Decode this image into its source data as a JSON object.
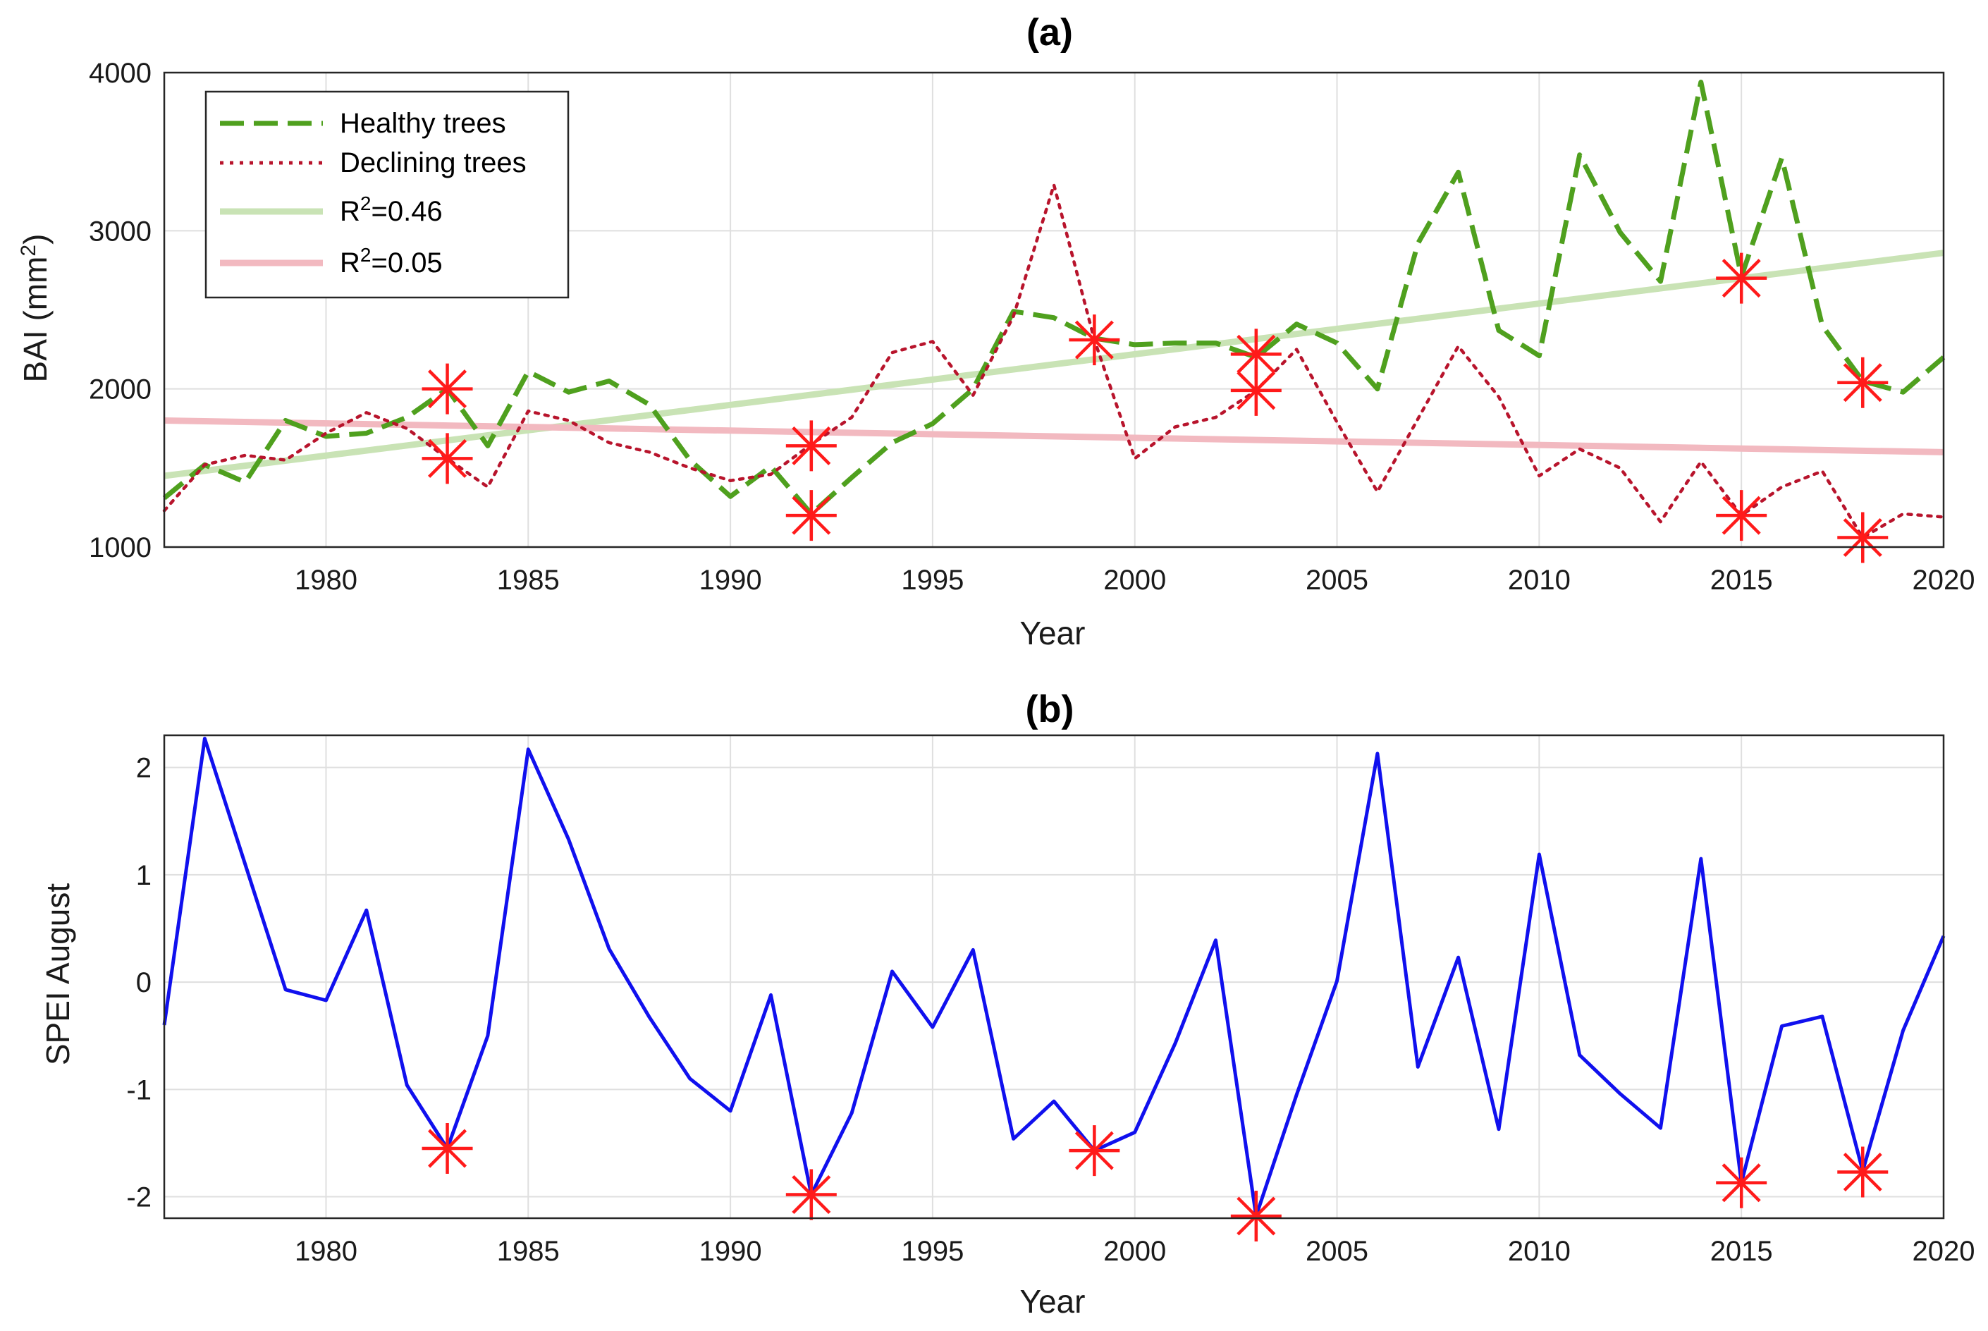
{
  "chart_data": [
    {
      "type": "line",
      "title": "(a)",
      "xlabel": "Year",
      "ylabel": "BAI (mm²)",
      "ylabel_base": "BAI (mm",
      "ylabel_sup": "2",
      "ylabel_tail": ")",
      "xlim": [
        1976,
        2020
      ],
      "ylim": [
        1000,
        4000
      ],
      "xticks": [
        "1980",
        "1985",
        "1990",
        "1995",
        "2000",
        "2005",
        "2010",
        "2015",
        "2020"
      ],
      "yticks": [
        "1000",
        "2000",
        "3000",
        "4000"
      ],
      "grid": true,
      "legend_position": "top-left",
      "x": [
        1976,
        1977,
        1978,
        1979,
        1980,
        1981,
        1982,
        1983,
        1984,
        1985,
        1986,
        1987,
        1988,
        1989,
        1990,
        1991,
        1992,
        1993,
        1994,
        1995,
        1996,
        1997,
        1998,
        1999,
        2000,
        2001,
        2002,
        2003,
        2004,
        2005,
        2006,
        2007,
        2008,
        2009,
        2010,
        2011,
        2012,
        2013,
        2014,
        2015,
        2016,
        2017,
        2018,
        2019,
        2020
      ],
      "series": [
        {
          "name": "Healthy trees",
          "color": "#4fa01e",
          "style": "dashed",
          "values": [
            1310,
            1520,
            1410,
            1800,
            1700,
            1720,
            1820,
            2000,
            1640,
            2110,
            1980,
            2050,
            1900,
            1550,
            1320,
            1510,
            1210,
            1440,
            1660,
            1780,
            2000,
            2490,
            2450,
            2320,
            2280,
            2290,
            2290,
            2200,
            2410,
            2290,
            2000,
            2920,
            3370,
            2370,
            2210,
            3480,
            2990,
            2680,
            3940,
            2710,
            3460,
            2400,
            2050,
            1980,
            2200
          ]
        },
        {
          "name": "Declining trees",
          "color": "#b8142c",
          "style": "dotted",
          "values": [
            1230,
            1520,
            1580,
            1550,
            1720,
            1850,
            1750,
            1560,
            1380,
            1860,
            1800,
            1660,
            1600,
            1500,
            1420,
            1460,
            1650,
            1820,
            2230,
            2300,
            1960,
            2460,
            3290,
            2310,
            1560,
            1760,
            1820,
            1990,
            2250,
            1790,
            1350,
            1810,
            2270,
            1950,
            1450,
            1620,
            1500,
            1160,
            1540,
            1200,
            1380,
            1480,
            1060,
            1210,
            1190
          ]
        },
        {
          "name": "R²=0.46",
          "label_base": "R",
          "label_sup": "2",
          "label_tail": "=0.46",
          "color": "#c9e3b5",
          "style": "solid",
          "type": "trend",
          "x": [
            1976,
            2020
          ],
          "values": [
            1450,
            2860
          ]
        },
        {
          "name": "R²=0.05",
          "label_base": "R",
          "label_sup": "2",
          "label_tail": "=0.05",
          "color": "#f2b9c0",
          "style": "solid",
          "type": "trend",
          "x": [
            1976,
            2020
          ],
          "values": [
            1800,
            1600
          ]
        }
      ],
      "markers": {
        "symbol": "asterisk",
        "color": "#ff1a1a",
        "points": [
          [
            1983,
            2000
          ],
          [
            1983,
            1560
          ],
          [
            1992,
            1640
          ],
          [
            1992,
            1200
          ],
          [
            1999,
            2310
          ],
          [
            2003,
            2220
          ],
          [
            2003,
            1990
          ],
          [
            2015,
            2700
          ],
          [
            2015,
            1200
          ],
          [
            2018,
            2040
          ],
          [
            2018,
            1060
          ]
        ]
      }
    },
    {
      "type": "line",
      "title": "(b)",
      "xlabel": "Year",
      "ylabel": "SPEI August",
      "xlim": [
        1976,
        2020
      ],
      "ylim": [
        -2.2,
        2.3
      ],
      "xticks": [
        "1980",
        "1985",
        "1990",
        "1995",
        "2000",
        "2005",
        "2010",
        "2015",
        "2020"
      ],
      "yticks": [
        "-2",
        "-1",
        "0",
        "1",
        "2"
      ],
      "grid": true,
      "x": [
        1976,
        1977,
        1978,
        1979,
        1980,
        1981,
        1982,
        1983,
        1984,
        1985,
        1986,
        1987,
        1988,
        1989,
        1990,
        1991,
        1992,
        1993,
        1994,
        1995,
        1996,
        1997,
        1998,
        1999,
        2000,
        2001,
        2002,
        2003,
        2004,
        2005,
        2006,
        2007,
        2008,
        2009,
        2010,
        2011,
        2012,
        2013,
        2014,
        2015,
        2016,
        2017,
        2018,
        2019,
        2020
      ],
      "series": [
        {
          "name": "SPEI August",
          "color": "#1010ee",
          "style": "solid",
          "values": [
            -0.4,
            2.27,
            1.1,
            -0.07,
            -0.17,
            0.67,
            -0.96,
            -1.55,
            -0.5,
            2.17,
            1.33,
            0.31,
            -0.33,
            -0.9,
            -1.2,
            -0.12,
            -1.98,
            -1.22,
            0.1,
            -0.42,
            0.3,
            -1.46,
            -1.11,
            -1.57,
            -1.4,
            -0.57,
            0.39,
            -2.18,
            -1.05,
            0.01,
            2.13,
            -0.79,
            0.23,
            -1.37,
            1.19,
            -0.68,
            -1.04,
            -1.36,
            1.15,
            -1.87,
            -0.41,
            -0.32,
            -1.76,
            -0.45,
            0.43
          ]
        }
      ],
      "markers": {
        "symbol": "asterisk",
        "color": "#ff1a1a",
        "points": [
          [
            1983,
            -1.55
          ],
          [
            1992,
            -1.98
          ],
          [
            1999,
            -1.57
          ],
          [
            2003,
            -2.18
          ],
          [
            2015,
            -1.87
          ],
          [
            2018,
            -1.77
          ]
        ]
      }
    }
  ]
}
